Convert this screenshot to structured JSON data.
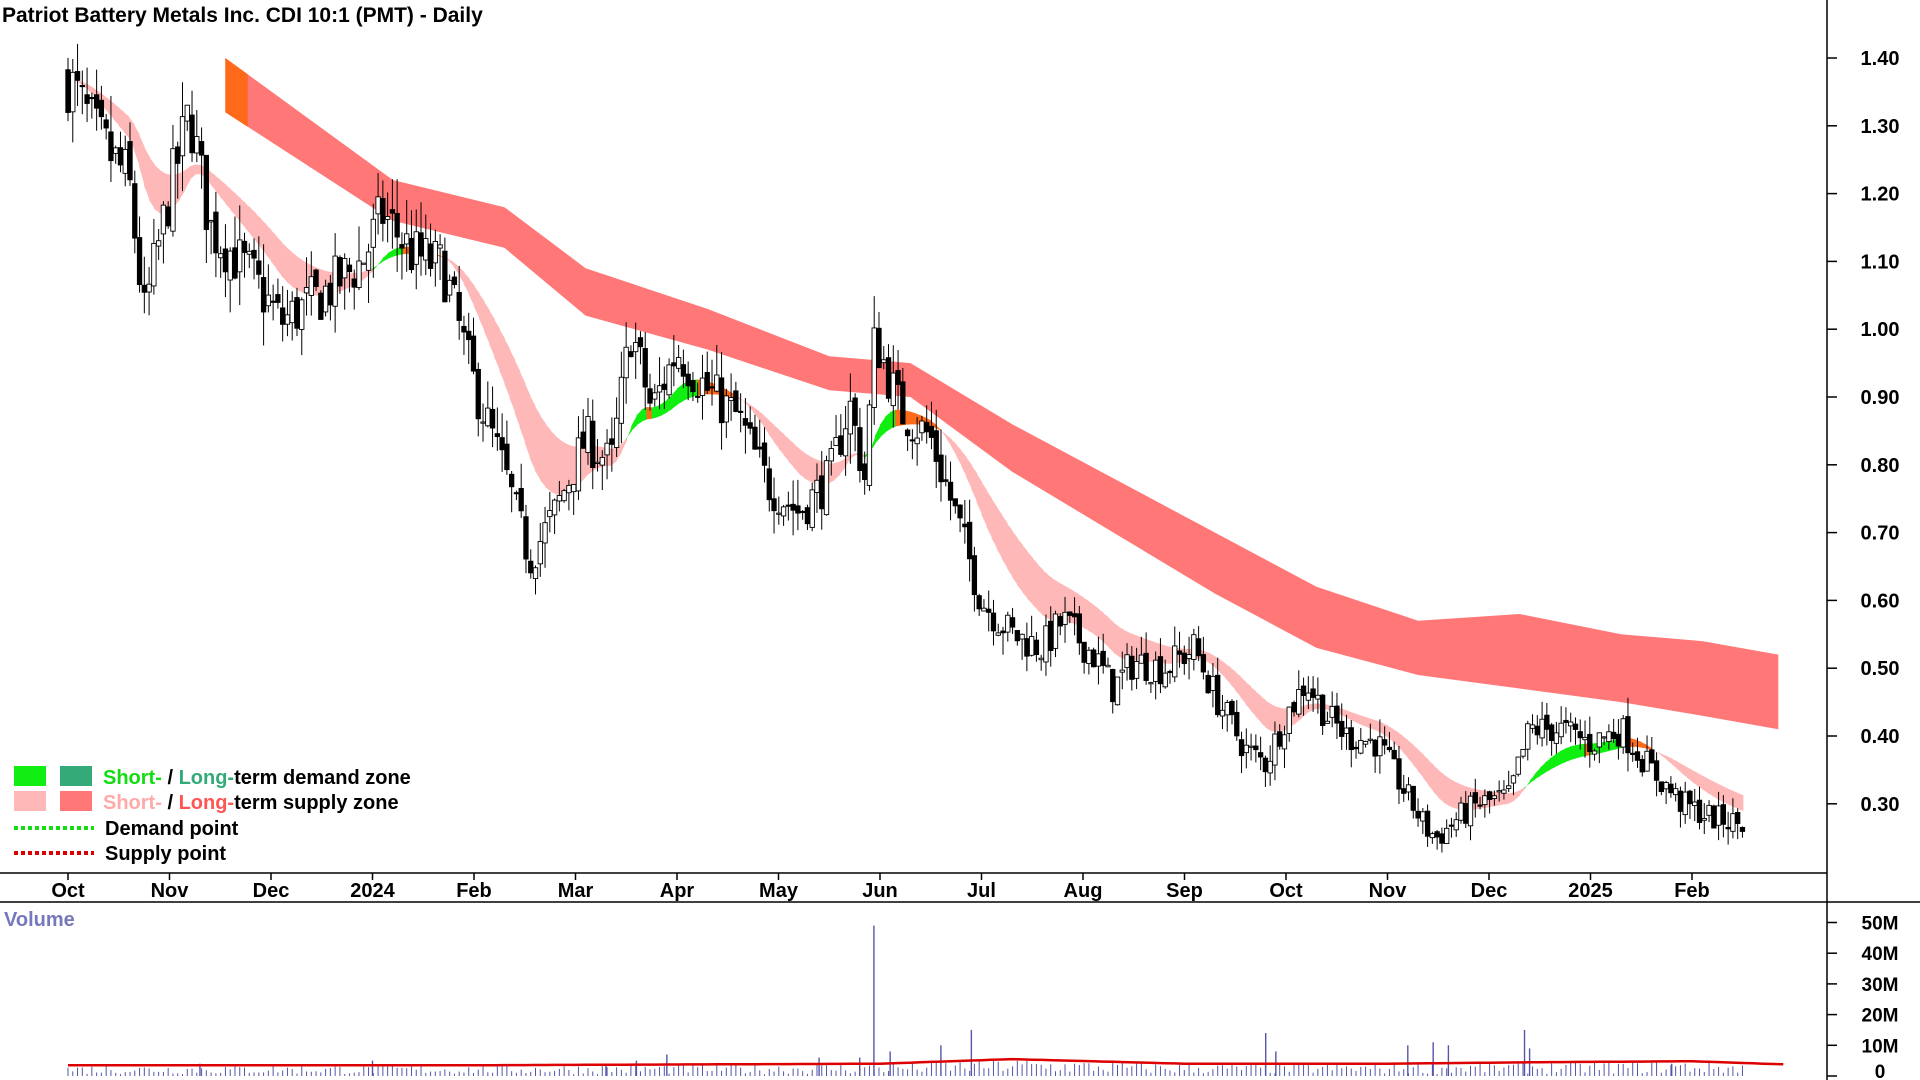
{
  "chart_data": {
    "type": "candlestick",
    "title": "Patriot Battery Metals Inc. CDI 10:1 (PMT) - Daily",
    "x_ticks": [
      "Oct",
      "Nov",
      "Dec",
      "2024",
      "Feb",
      "Mar",
      "Apr",
      "May",
      "Jun",
      "Jul",
      "Aug",
      "Sep",
      "Oct",
      "Nov",
      "Dec",
      "2025",
      "Feb"
    ],
    "y_ticks": [
      "1.40",
      "1.30",
      "1.20",
      "1.10",
      "1.00",
      "0.90",
      "0.80",
      "0.70",
      "0.60",
      "0.50",
      "0.40",
      "0.30"
    ],
    "y_tick_values": [
      1.4,
      1.3,
      1.2,
      1.1,
      1.0,
      0.9,
      0.8,
      0.7,
      0.6,
      0.5,
      0.4,
      0.3
    ],
    "ylim": [
      0.22,
      1.5
    ],
    "price_path": [
      {
        "m": 0.0,
        "p": 1.37
      },
      {
        "m": 0.3,
        "p": 1.28
      },
      {
        "m": 0.6,
        "p": 1.22
      },
      {
        "m": 0.75,
        "p": 1.02
      },
      {
        "m": 1.0,
        "p": 1.2
      },
      {
        "m": 1.2,
        "p": 1.32
      },
      {
        "m": 1.4,
        "p": 1.15
      },
      {
        "m": 1.8,
        "p": 1.08
      },
      {
        "m": 2.1,
        "p": 1.01
      },
      {
        "m": 2.5,
        "p": 1.05
      },
      {
        "m": 2.9,
        "p": 1.1
      },
      {
        "m": 3.1,
        "p": 1.17
      },
      {
        "m": 3.4,
        "p": 1.11
      },
      {
        "m": 3.7,
        "p": 1.09
      },
      {
        "m": 4.0,
        "p": 0.92
      },
      {
        "m": 4.3,
        "p": 0.79
      },
      {
        "m": 4.55,
        "p": 0.66
      },
      {
        "m": 4.8,
        "p": 0.73
      },
      {
        "m": 5.1,
        "p": 0.84
      },
      {
        "m": 5.35,
        "p": 0.8
      },
      {
        "m": 5.55,
        "p": 1.0
      },
      {
        "m": 5.75,
        "p": 0.88
      },
      {
        "m": 6.0,
        "p": 0.97
      },
      {
        "m": 6.3,
        "p": 0.91
      },
      {
        "m": 6.6,
        "p": 0.87
      },
      {
        "m": 6.9,
        "p": 0.77
      },
      {
        "m": 7.2,
        "p": 0.73
      },
      {
        "m": 7.5,
        "p": 0.78
      },
      {
        "m": 7.7,
        "p": 0.89
      },
      {
        "m": 7.85,
        "p": 0.78
      },
      {
        "m": 7.95,
        "p": 0.99
      },
      {
        "m": 8.2,
        "p": 0.88
      },
      {
        "m": 8.5,
        "p": 0.84
      },
      {
        "m": 8.8,
        "p": 0.7
      },
      {
        "m": 9.0,
        "p": 0.6
      },
      {
        "m": 9.3,
        "p": 0.55
      },
      {
        "m": 9.6,
        "p": 0.53
      },
      {
        "m": 9.8,
        "p": 0.57
      },
      {
        "m": 10.1,
        "p": 0.52
      },
      {
        "m": 10.3,
        "p": 0.47
      },
      {
        "m": 10.5,
        "p": 0.51
      },
      {
        "m": 10.8,
        "p": 0.5
      },
      {
        "m": 11.1,
        "p": 0.53
      },
      {
        "m": 11.3,
        "p": 0.46
      },
      {
        "m": 11.6,
        "p": 0.38
      },
      {
        "m": 11.8,
        "p": 0.36
      },
      {
        "m": 12.0,
        "p": 0.43
      },
      {
        "m": 12.2,
        "p": 0.48
      },
      {
        "m": 12.4,
        "p": 0.43
      },
      {
        "m": 12.6,
        "p": 0.4
      },
      {
        "m": 12.9,
        "p": 0.39
      },
      {
        "m": 13.2,
        "p": 0.31
      },
      {
        "m": 13.4,
        "p": 0.26
      },
      {
        "m": 13.5,
        "p": 0.25
      },
      {
        "m": 13.7,
        "p": 0.28
      },
      {
        "m": 13.9,
        "p": 0.3
      },
      {
        "m": 14.2,
        "p": 0.31
      },
      {
        "m": 14.4,
        "p": 0.41
      },
      {
        "m": 14.7,
        "p": 0.41
      },
      {
        "m": 15.0,
        "p": 0.39
      },
      {
        "m": 15.3,
        "p": 0.41
      },
      {
        "m": 15.6,
        "p": 0.35
      },
      {
        "m": 15.9,
        "p": 0.3
      },
      {
        "m": 16.2,
        "p": 0.28
      },
      {
        "m": 16.5,
        "p": 0.27
      }
    ],
    "long_term_supply_zone": [
      {
        "m": 1.55,
        "top": 1.4,
        "bottom": 1.32
      },
      {
        "m": 3.2,
        "top": 1.22,
        "bottom": 1.16
      },
      {
        "m": 4.3,
        "top": 1.18,
        "bottom": 1.12
      },
      {
        "m": 5.1,
        "top": 1.09,
        "bottom": 1.02
      },
      {
        "m": 6.3,
        "top": 1.03,
        "bottom": 0.97
      },
      {
        "m": 7.5,
        "top": 0.96,
        "bottom": 0.91
      },
      {
        "m": 8.3,
        "top": 0.95,
        "bottom": 0.9
      },
      {
        "m": 9.3,
        "top": 0.86,
        "bottom": 0.79
      },
      {
        "m": 10.3,
        "top": 0.78,
        "bottom": 0.7
      },
      {
        "m": 11.3,
        "top": 0.7,
        "bottom": 0.61
      },
      {
        "m": 12.3,
        "top": 0.62,
        "bottom": 0.53
      },
      {
        "m": 13.3,
        "top": 0.57,
        "bottom": 0.49
      },
      {
        "m": 14.3,
        "top": 0.58,
        "bottom": 0.47
      },
      {
        "m": 15.3,
        "top": 0.55,
        "bottom": 0.45
      },
      {
        "m": 16.1,
        "top": 0.54,
        "bottom": 0.43
      },
      {
        "m": 16.85,
        "top": 0.52,
        "bottom": 0.41
      }
    ],
    "volume": {
      "title": "Volume",
      "ticks": [
        "50M",
        "40M",
        "30M",
        "20M",
        "10M",
        "0"
      ],
      "tick_values": [
        50,
        40,
        30,
        20,
        10,
        0
      ],
      "unit": "M",
      "spikes": [
        {
          "m": 1.3,
          "v": 4
        },
        {
          "m": 3.0,
          "v": 5
        },
        {
          "m": 5.3,
          "v": 4
        },
        {
          "m": 5.6,
          "v": 5
        },
        {
          "m": 5.9,
          "v": 7
        },
        {
          "m": 7.4,
          "v": 6
        },
        {
          "m": 7.8,
          "v": 6
        },
        {
          "m": 7.94,
          "v": 49
        },
        {
          "m": 8.1,
          "v": 8
        },
        {
          "m": 8.6,
          "v": 10
        },
        {
          "m": 8.9,
          "v": 15
        },
        {
          "m": 11.8,
          "v": 14
        },
        {
          "m": 11.9,
          "v": 8
        },
        {
          "m": 13.2,
          "v": 10
        },
        {
          "m": 13.45,
          "v": 11
        },
        {
          "m": 13.6,
          "v": 10
        },
        {
          "m": 14.35,
          "v": 15
        },
        {
          "m": 14.4,
          "v": 9
        },
        {
          "m": 15.8,
          "v": 4
        }
      ],
      "average": [
        {
          "m": 0,
          "v": 3.5
        },
        {
          "m": 4,
          "v": 3.5
        },
        {
          "m": 8,
          "v": 4
        },
        {
          "m": 9.3,
          "v": 5.5
        },
        {
          "m": 11,
          "v": 4
        },
        {
          "m": 13,
          "v": 4
        },
        {
          "m": 14.5,
          "v": 4.5
        },
        {
          "m": 16,
          "v": 4.8
        },
        {
          "m": 16.9,
          "v": 3.8
        }
      ]
    },
    "legend": {
      "demand_zone": {
        "short": "Short-",
        "sep": " / ",
        "long": "Long-",
        "suffix": "term demand zone"
      },
      "supply_zone": {
        "short": "Short-",
        "sep": " / ",
        "long": "Long-",
        "suffix": "term supply zone"
      },
      "demand_point": "Demand point",
      "supply_point": "Supply point"
    },
    "colors": {
      "long_supply": "#ff7777",
      "short_supply": "#ffb8b8",
      "short_demand": "#11ee11",
      "long_demand": "#33aa77",
      "orange": "#ff6a1a",
      "candle": "#000000",
      "volume_bar": "#5555aa",
      "volume_avg": "#dd0000",
      "legend_green_text": "#11dd11",
      "legend_pink_text": "#ffaaaa",
      "legend_red_text": "#ff5555",
      "demand_point": "#11dd11",
      "supply_point": "#dd0000",
      "volume_title": "#7777bb"
    }
  }
}
